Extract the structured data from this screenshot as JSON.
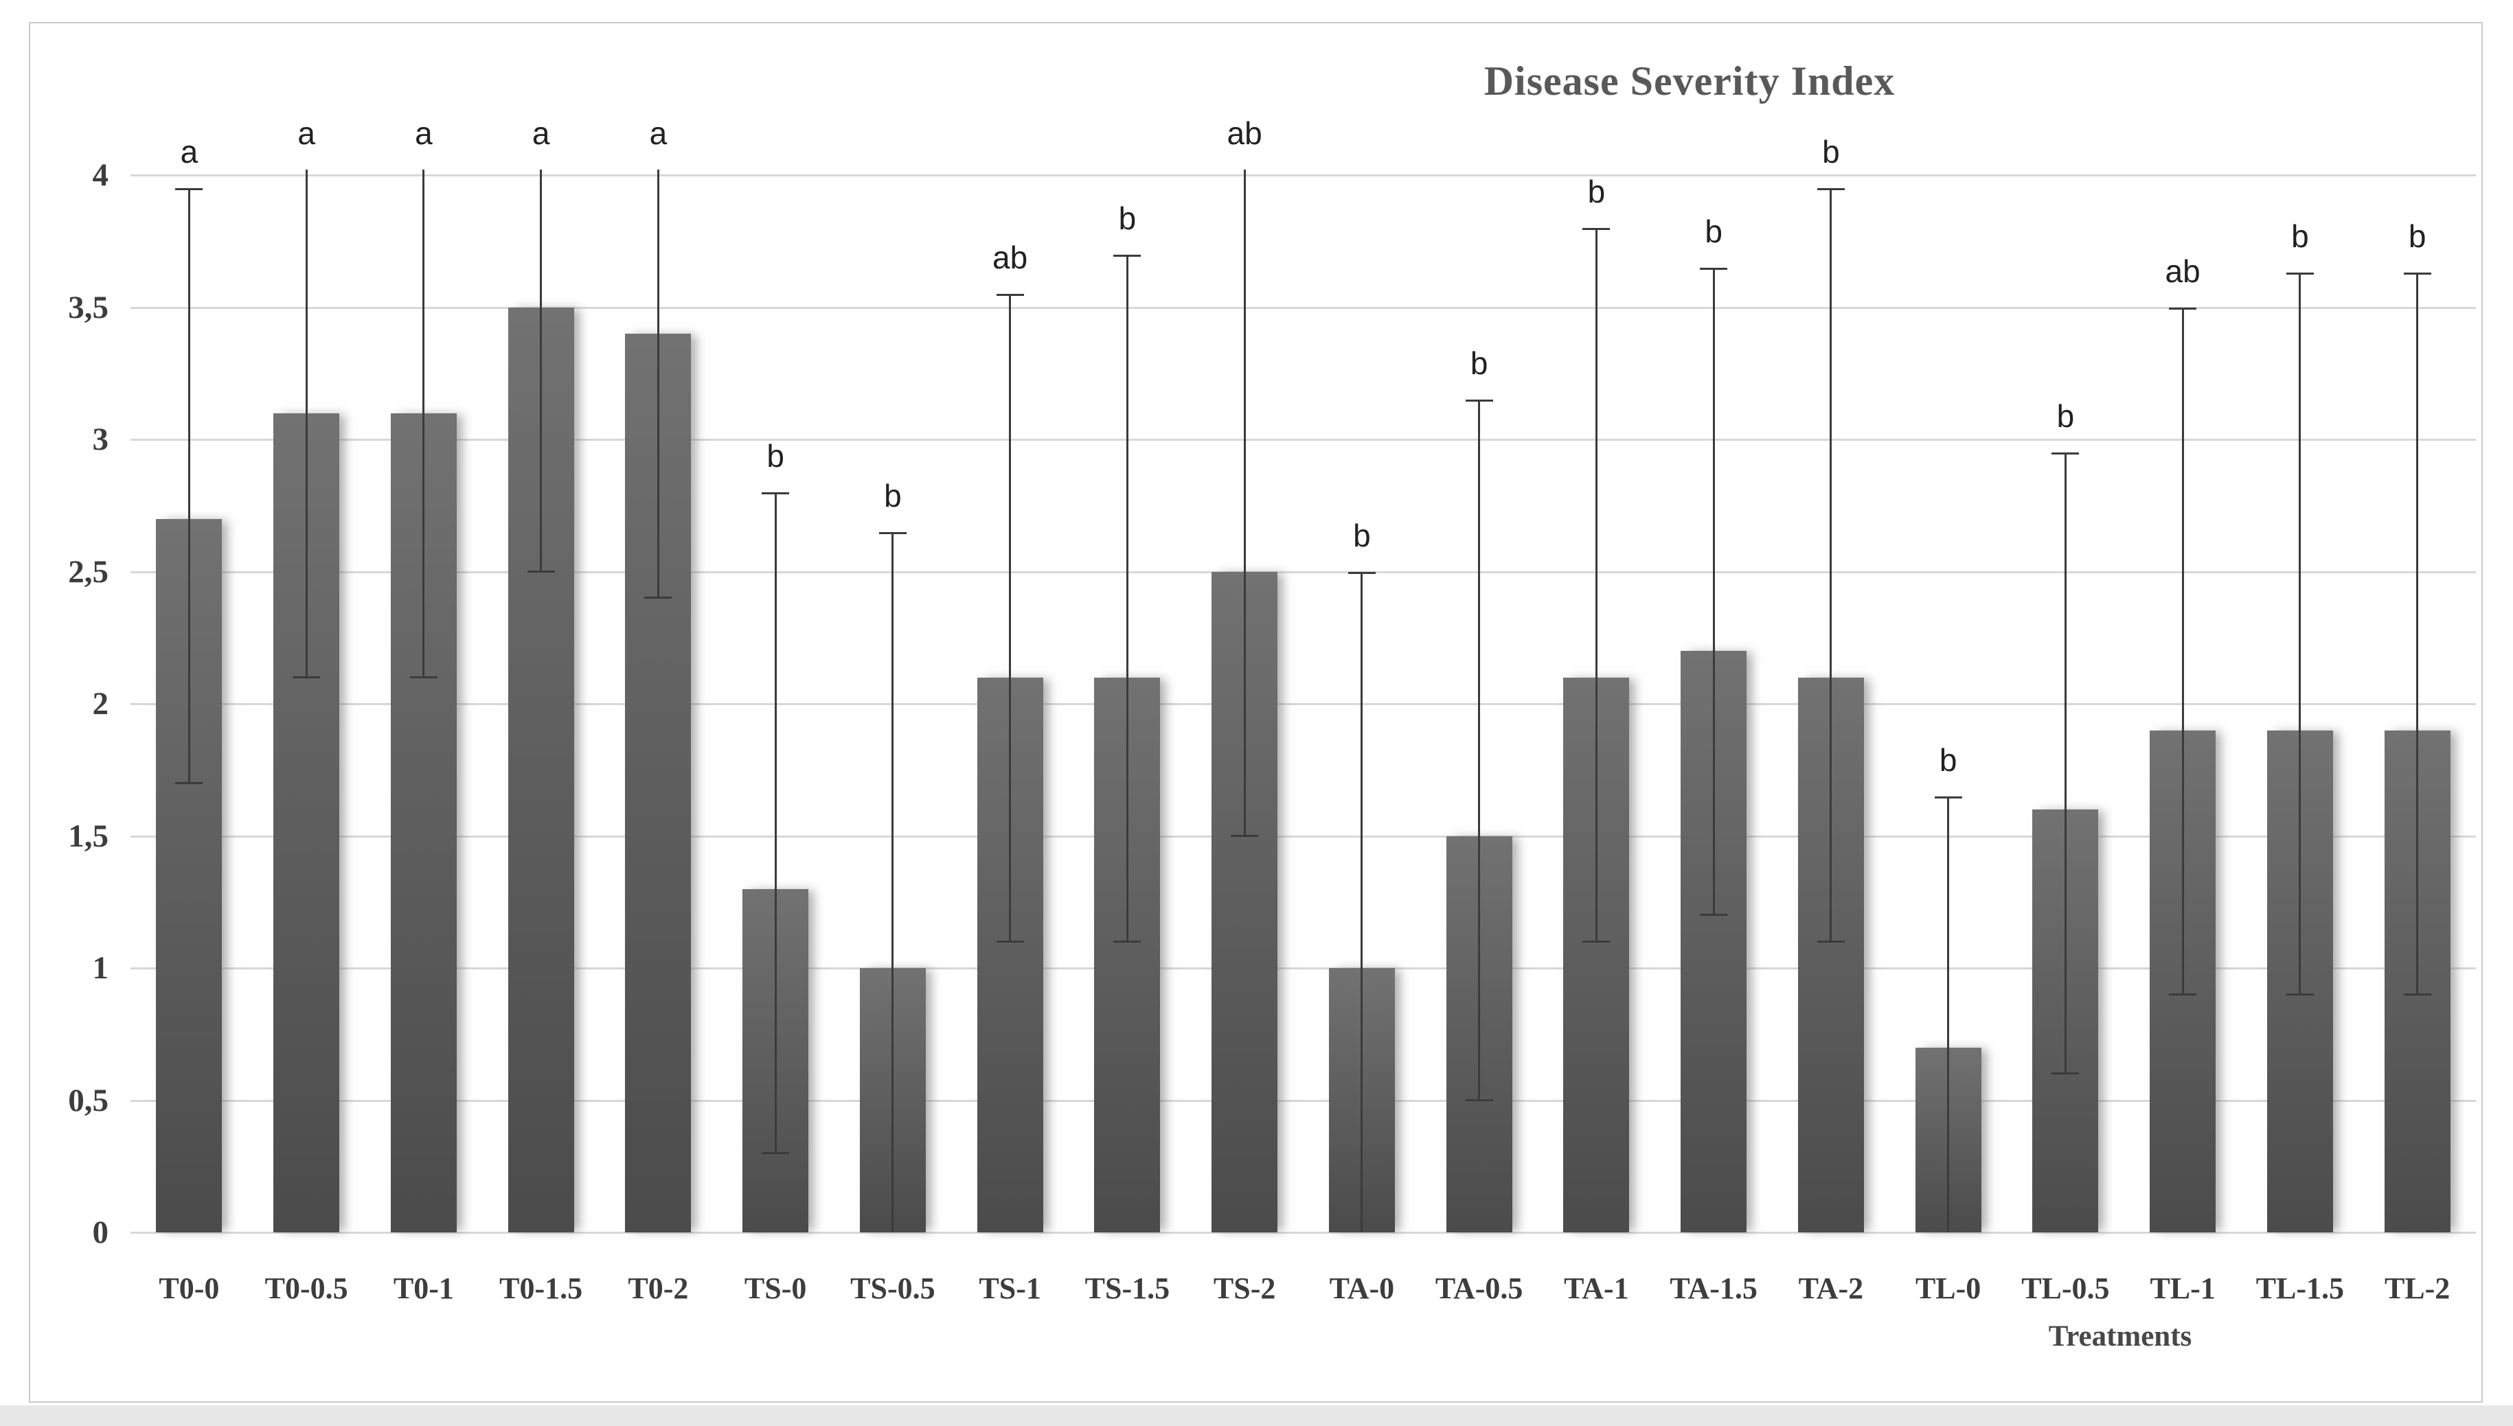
{
  "chart_data": {
    "type": "bar",
    "title": "Disease Severity Index",
    "xlabel": "Treatments",
    "ylabel": "",
    "ylim": [
      0,
      4
    ],
    "ytick_step": 0.5,
    "decimal_separator": ",",
    "grid": true,
    "legend": "none",
    "y_tick_labels": [
      "0",
      "0,5",
      "1",
      "1,5",
      "2",
      "2,5",
      "3",
      "3,5",
      "4"
    ],
    "categories": [
      "T0-0",
      "T0-0.5",
      "T0-1",
      "T0-1.5",
      "T0-2",
      "TS-0",
      "TS-0.5",
      "TS-1",
      "TS-1.5",
      "TS-2",
      "TA-0",
      "TA-0.5",
      "TA-1",
      "TA-1.5",
      "TA-2",
      "TL-0",
      "TL-0.5",
      "TL-1",
      "TL-1.5",
      "TL-2"
    ],
    "values": [
      2.7,
      3.1,
      3.1,
      3.5,
      3.4,
      1.3,
      1.0,
      2.1,
      2.1,
      2.5,
      1.0,
      1.5,
      2.1,
      2.2,
      2.1,
      0.7,
      1.6,
      1.9,
      1.9,
      1.9
    ],
    "error_high": [
      3.95,
      4.02,
      4.02,
      4.02,
      4.02,
      2.8,
      2.65,
      3.55,
      3.7,
      4.02,
      2.5,
      3.15,
      3.8,
      3.65,
      3.95,
      1.65,
      2.95,
      3.5,
      3.63,
      3.63
    ],
    "error_low": [
      1.7,
      2.1,
      2.1,
      2.5,
      2.4,
      0.3,
      0,
      1.1,
      1.1,
      1.5,
      0,
      0.5,
      1.1,
      1.2,
      1.1,
      0,
      0.6,
      0.9,
      0.9,
      0.9
    ],
    "sig_letters": [
      "a",
      "a",
      "a",
      "a",
      "a",
      "b",
      "b",
      "ab",
      "b",
      "ab",
      "b",
      "b",
      "b",
      "b",
      "b",
      "b",
      "b",
      "ab",
      "b",
      "b"
    ]
  },
  "colors": {
    "bar_top": "#727272",
    "bar_bottom": "#4b4b4b",
    "error_bar": "#3b3b3b",
    "gridline": "#d8d8d8",
    "title_text": "#595959",
    "axis_text": "#3d3d3d",
    "letter_text": "#212121",
    "frame_border": "#c9c9c9"
  }
}
